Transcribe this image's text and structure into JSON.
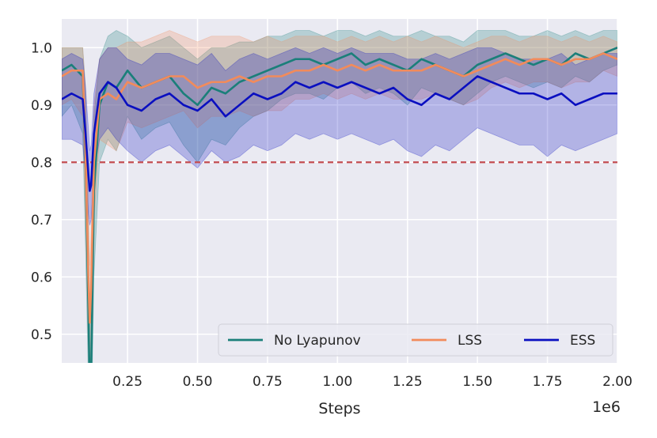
{
  "chart_data": {
    "type": "line",
    "title": "",
    "xlabel": "Steps",
    "ylabel": "",
    "x_scale_label": "1e6",
    "xlim": [
      0.015,
      2.0
    ],
    "ylim": [
      0.45,
      1.05
    ],
    "x_ticks": [
      0.25,
      0.5,
      0.75,
      1.0,
      1.25,
      1.5,
      1.75,
      2.0
    ],
    "x_tick_labels": [
      "0.25",
      "0.50",
      "0.75",
      "1.00",
      "1.25",
      "1.50",
      "1.75",
      "2.00"
    ],
    "y_ticks": [
      0.5,
      0.6,
      0.7,
      0.8,
      0.9,
      1.0
    ],
    "y_tick_labels": [
      "0.5",
      "0.6",
      "0.7",
      "0.8",
      "0.9",
      "1.0"
    ],
    "grid": true,
    "background": "#eaeaf2",
    "legend_position": "bottom-right",
    "threshold": {
      "y": 0.8,
      "color": "#c44e52",
      "style": "dashed"
    },
    "series": [
      {
        "name": "No Lyapunov",
        "color": "#1b7f7a",
        "x": [
          0.015,
          0.05,
          0.09,
          0.1,
          0.11,
          0.115,
          0.12,
          0.13,
          0.15,
          0.18,
          0.21,
          0.25,
          0.3,
          0.35,
          0.4,
          0.45,
          0.5,
          0.55,
          0.6,
          0.65,
          0.7,
          0.75,
          0.8,
          0.85,
          0.9,
          0.95,
          1.0,
          1.05,
          1.1,
          1.15,
          1.2,
          1.25,
          1.3,
          1.35,
          1.4,
          1.45,
          1.5,
          1.55,
          1.6,
          1.65,
          1.7,
          1.75,
          1.8,
          1.85,
          1.9,
          1.95,
          2.0
        ],
        "mean": [
          0.96,
          0.97,
          0.95,
          0.8,
          0.55,
          0.4,
          0.43,
          0.75,
          0.9,
          0.94,
          0.93,
          0.96,
          0.93,
          0.94,
          0.95,
          0.92,
          0.9,
          0.93,
          0.92,
          0.94,
          0.95,
          0.96,
          0.97,
          0.98,
          0.98,
          0.97,
          0.98,
          0.99,
          0.97,
          0.98,
          0.97,
          0.96,
          0.98,
          0.97,
          0.96,
          0.95,
          0.97,
          0.98,
          0.99,
          0.98,
          0.97,
          0.98,
          0.97,
          0.99,
          0.98,
          0.99,
          1.0
        ],
        "lower": [
          0.88,
          0.9,
          0.85,
          0.65,
          0.42,
          0.3,
          0.32,
          0.6,
          0.8,
          0.84,
          0.82,
          0.88,
          0.84,
          0.86,
          0.87,
          0.83,
          0.8,
          0.84,
          0.83,
          0.86,
          0.88,
          0.89,
          0.91,
          0.92,
          0.92,
          0.91,
          0.93,
          0.94,
          0.92,
          0.93,
          0.92,
          0.9,
          0.93,
          0.92,
          0.91,
          0.9,
          0.92,
          0.94,
          0.95,
          0.94,
          0.93,
          0.94,
          0.93,
          0.95,
          0.94,
          0.96,
          0.97
        ],
        "upper": [
          1.0,
          1.0,
          1.0,
          0.93,
          0.7,
          0.52,
          0.56,
          0.88,
          0.98,
          1.02,
          1.03,
          1.02,
          1.0,
          1.01,
          1.02,
          1.0,
          0.98,
          1.0,
          1.0,
          1.01,
          1.01,
          1.02,
          1.02,
          1.03,
          1.03,
          1.02,
          1.03,
          1.03,
          1.02,
          1.03,
          1.02,
          1.02,
          1.03,
          1.02,
          1.02,
          1.01,
          1.03,
          1.03,
          1.03,
          1.02,
          1.02,
          1.03,
          1.02,
          1.03,
          1.02,
          1.03,
          1.03
        ]
      },
      {
        "name": "LSS",
        "color": "#f28b5b",
        "x": [
          0.015,
          0.05,
          0.09,
          0.1,
          0.11,
          0.115,
          0.12,
          0.13,
          0.15,
          0.18,
          0.21,
          0.25,
          0.3,
          0.35,
          0.4,
          0.45,
          0.5,
          0.55,
          0.6,
          0.65,
          0.7,
          0.75,
          0.8,
          0.85,
          0.9,
          0.95,
          1.0,
          1.05,
          1.1,
          1.15,
          1.2,
          1.25,
          1.3,
          1.35,
          1.4,
          1.45,
          1.5,
          1.55,
          1.6,
          1.65,
          1.7,
          1.75,
          1.8,
          1.85,
          1.9,
          1.95,
          2.0
        ],
        "mean": [
          0.95,
          0.96,
          0.96,
          0.82,
          0.6,
          0.52,
          0.58,
          0.8,
          0.91,
          0.92,
          0.91,
          0.94,
          0.93,
          0.94,
          0.95,
          0.95,
          0.93,
          0.94,
          0.94,
          0.95,
          0.94,
          0.95,
          0.95,
          0.96,
          0.96,
          0.97,
          0.96,
          0.97,
          0.96,
          0.97,
          0.96,
          0.96,
          0.96,
          0.97,
          0.96,
          0.95,
          0.96,
          0.97,
          0.98,
          0.97,
          0.98,
          0.98,
          0.97,
          0.98,
          0.98,
          0.99,
          0.98
        ],
        "lower": [
          0.9,
          0.91,
          0.88,
          0.7,
          0.48,
          0.42,
          0.48,
          0.7,
          0.84,
          0.83,
          0.82,
          0.87,
          0.86,
          0.87,
          0.88,
          0.89,
          0.86,
          0.88,
          0.88,
          0.89,
          0.88,
          0.89,
          0.89,
          0.91,
          0.91,
          0.92,
          0.91,
          0.92,
          0.91,
          0.92,
          0.91,
          0.91,
          0.91,
          0.92,
          0.91,
          0.9,
          0.91,
          0.93,
          0.94,
          0.93,
          0.94,
          0.94,
          0.93,
          0.94,
          0.94,
          0.96,
          0.95
        ],
        "upper": [
          1.0,
          1.0,
          1.0,
          0.93,
          0.72,
          0.62,
          0.68,
          0.9,
          0.98,
          1.0,
          1.0,
          1.01,
          1.01,
          1.02,
          1.03,
          1.02,
          1.01,
          1.02,
          1.02,
          1.02,
          1.01,
          1.02,
          1.01,
          1.02,
          1.02,
          1.02,
          1.01,
          1.02,
          1.01,
          1.02,
          1.01,
          1.02,
          1.01,
          1.02,
          1.01,
          1.0,
          1.01,
          1.02,
          1.02,
          1.01,
          1.02,
          1.02,
          1.01,
          1.02,
          1.01,
          1.02,
          1.01
        ]
      },
      {
        "name": "ESS",
        "color": "#0a0fc0",
        "x": [
          0.015,
          0.05,
          0.09,
          0.1,
          0.11,
          0.115,
          0.12,
          0.13,
          0.15,
          0.18,
          0.21,
          0.25,
          0.3,
          0.35,
          0.4,
          0.45,
          0.5,
          0.55,
          0.6,
          0.65,
          0.7,
          0.75,
          0.8,
          0.85,
          0.9,
          0.95,
          1.0,
          1.05,
          1.1,
          1.15,
          1.2,
          1.25,
          1.3,
          1.35,
          1.4,
          1.45,
          1.5,
          1.55,
          1.6,
          1.65,
          1.7,
          1.75,
          1.8,
          1.85,
          1.9,
          1.95,
          2.0
        ],
        "mean": [
          0.91,
          0.92,
          0.91,
          0.85,
          0.78,
          0.75,
          0.76,
          0.85,
          0.92,
          0.94,
          0.93,
          0.9,
          0.89,
          0.91,
          0.92,
          0.9,
          0.89,
          0.91,
          0.88,
          0.9,
          0.92,
          0.91,
          0.92,
          0.94,
          0.93,
          0.94,
          0.93,
          0.94,
          0.93,
          0.92,
          0.93,
          0.91,
          0.9,
          0.92,
          0.91,
          0.93,
          0.95,
          0.94,
          0.93,
          0.92,
          0.92,
          0.91,
          0.92,
          0.9,
          0.91,
          0.92,
          0.92
        ],
        "lower": [
          0.84,
          0.84,
          0.83,
          0.78,
          0.71,
          0.69,
          0.7,
          0.78,
          0.84,
          0.86,
          0.84,
          0.82,
          0.8,
          0.82,
          0.83,
          0.81,
          0.79,
          0.82,
          0.8,
          0.81,
          0.83,
          0.82,
          0.83,
          0.85,
          0.84,
          0.85,
          0.84,
          0.85,
          0.84,
          0.83,
          0.84,
          0.82,
          0.81,
          0.83,
          0.82,
          0.84,
          0.86,
          0.85,
          0.84,
          0.83,
          0.83,
          0.81,
          0.83,
          0.82,
          0.83,
          0.84,
          0.85
        ],
        "upper": [
          0.98,
          0.99,
          0.98,
          0.93,
          0.86,
          0.82,
          0.83,
          0.92,
          0.98,
          1.0,
          1.0,
          0.98,
          0.97,
          0.99,
          0.99,
          0.98,
          0.97,
          0.99,
          0.96,
          0.98,
          0.99,
          0.98,
          0.99,
          1.0,
          0.99,
          1.0,
          0.99,
          1.0,
          0.99,
          0.99,
          0.99,
          0.98,
          0.98,
          0.99,
          0.98,
          0.99,
          1.0,
          1.0,
          0.99,
          0.98,
          0.98,
          0.98,
          0.99,
          0.97,
          0.98,
          0.99,
          0.99
        ]
      }
    ]
  }
}
